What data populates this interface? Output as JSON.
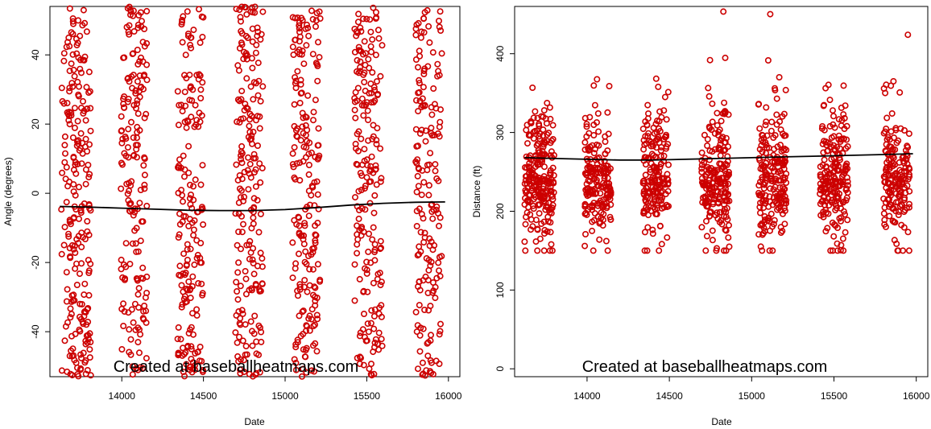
{
  "watermark": "Created at baseballheatmaps.com",
  "colors": {
    "points": "#cc0000",
    "trend": "#000000",
    "axis": "#000000"
  },
  "chart_data": [
    {
      "type": "scatter",
      "title": "",
      "xlabel": "Date",
      "ylabel": "Angle (degrees)",
      "xlim": [
        13560,
        16070
      ],
      "ylim": [
        -53,
        54
      ],
      "x_ticks": [
        14000,
        14500,
        15000,
        15500,
        16000
      ],
      "y_ticks": [
        -40,
        -20,
        0,
        20,
        40
      ],
      "grid": false,
      "legend": "none",
      "point_clusters": [
        {
          "center": 13720,
          "spread": 90,
          "count": 230
        },
        {
          "center": 14075,
          "spread": 80,
          "count": 180
        },
        {
          "center": 14420,
          "spread": 80,
          "count": 180
        },
        {
          "center": 14780,
          "spread": 85,
          "count": 200
        },
        {
          "center": 15130,
          "spread": 85,
          "count": 200
        },
        {
          "center": 15510,
          "spread": 85,
          "count": 200
        },
        {
          "center": 15880,
          "spread": 80,
          "count": 170
        }
      ],
      "trend": {
        "x": [
          13620,
          13800,
          14000,
          14200,
          14400,
          14600,
          14800,
          15000,
          15200,
          15400,
          15600,
          15800,
          15980
        ],
        "y": [
          -3.8,
          -4.0,
          -4.3,
          -4.6,
          -4.9,
          -5.0,
          -5.0,
          -4.7,
          -4.1,
          -3.4,
          -2.9,
          -2.6,
          -2.5
        ]
      }
    },
    {
      "type": "scatter",
      "title": "",
      "xlabel": "Date",
      "ylabel": "Distance (ft)",
      "xlim": [
        13560,
        16070
      ],
      "ylim": [
        -10,
        460
      ],
      "x_ticks": [
        14000,
        14500,
        15000,
        15500,
        16000
      ],
      "y_ticks": [
        0,
        100,
        200,
        300,
        400
      ],
      "grid": false,
      "legend": "none",
      "point_clusters": [
        {
          "center": 13710,
          "spread": 90,
          "count": 230
        },
        {
          "center": 14065,
          "spread": 80,
          "count": 180
        },
        {
          "center": 14415,
          "spread": 80,
          "count": 180
        },
        {
          "center": 14780,
          "spread": 85,
          "count": 200
        },
        {
          "center": 15125,
          "spread": 85,
          "count": 200
        },
        {
          "center": 15500,
          "spread": 85,
          "count": 200
        },
        {
          "center": 15880,
          "spread": 80,
          "count": 170
        }
      ],
      "trend": {
        "x": [
          13620,
          13800,
          14000,
          14200,
          14400,
          14600,
          14800,
          15000,
          15200,
          15400,
          15600,
          15800,
          15980
        ],
        "y": [
          268,
          267,
          266,
          265,
          265,
          266,
          267,
          268,
          269,
          270,
          271,
          272,
          273
        ]
      }
    }
  ]
}
